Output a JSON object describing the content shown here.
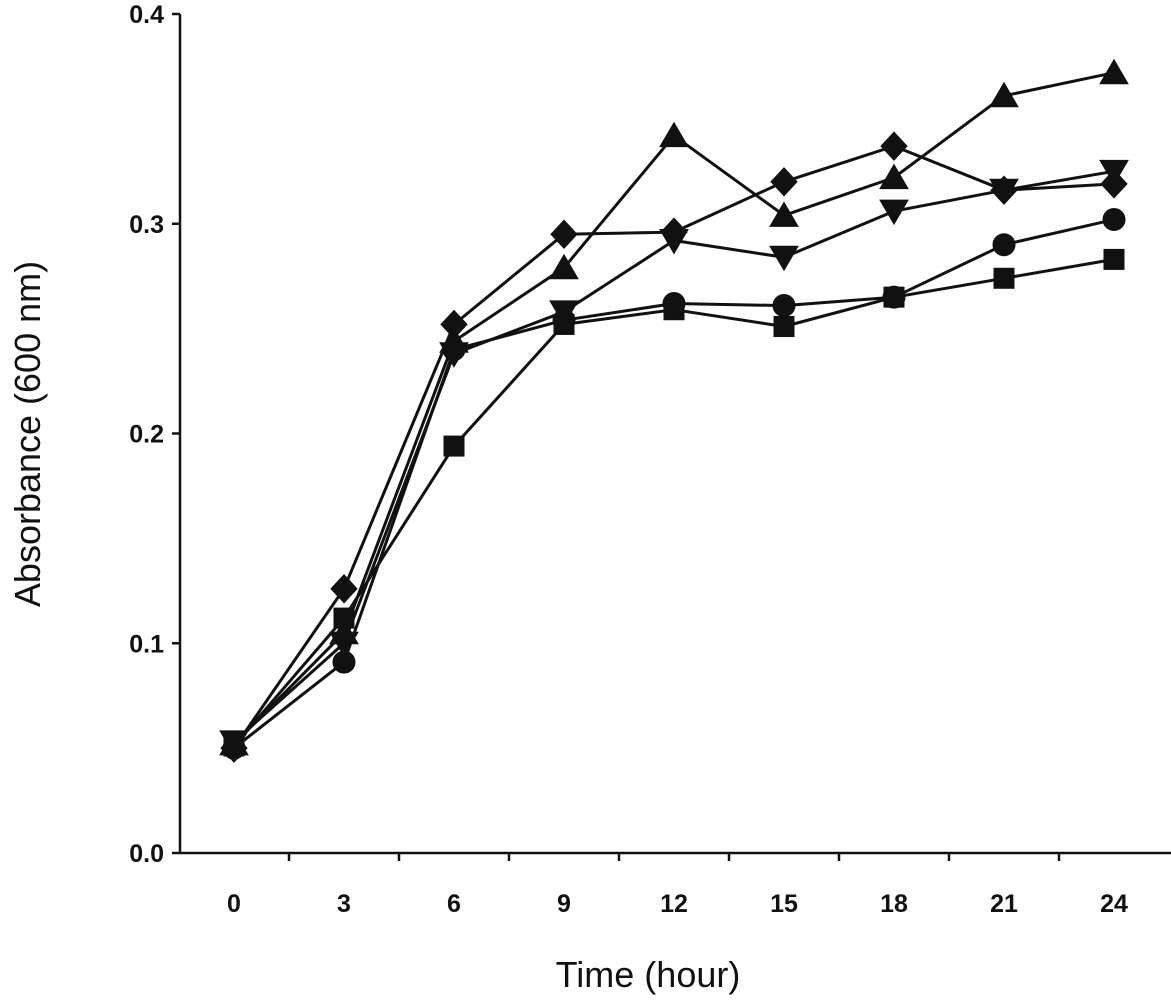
{
  "chart_data": {
    "type": "line",
    "title": "",
    "xlabel": "Time (hour)",
    "ylabel": "Absorbance (600 nm)",
    "x": [
      0,
      3,
      6,
      9,
      12,
      15,
      18,
      21,
      24
    ],
    "x_tick_labels": [
      "0",
      "3",
      "6",
      "9",
      "12",
      "15",
      "18",
      "21",
      "24"
    ],
    "y_tick_labels": [
      "0.0",
      "0.1",
      "0.2",
      "0.3",
      "0.4"
    ],
    "y_ticks": [
      0.0,
      0.1,
      0.2,
      0.3,
      0.4
    ],
    "xlim": [
      -1.5,
      25.5
    ],
    "ylim": [
      0.0,
      0.4
    ],
    "grid": false,
    "legend": "none",
    "series": [
      {
        "name": "square",
        "marker": "square",
        "values": [
          0.051,
          0.112,
          0.194,
          0.252,
          0.259,
          0.251,
          0.265,
          0.274,
          0.283
        ]
      },
      {
        "name": "circle",
        "marker": "circle",
        "values": [
          0.05,
          0.091,
          0.24,
          0.254,
          0.262,
          0.261,
          0.265,
          0.29,
          0.302
        ]
      },
      {
        "name": "triangle-up",
        "marker": "triangle-up",
        "values": [
          0.052,
          0.105,
          0.244,
          0.279,
          0.342,
          0.304,
          0.322,
          0.361,
          0.372
        ]
      },
      {
        "name": "triangle-down",
        "marker": "triangle-down",
        "values": [
          0.053,
          0.1,
          0.238,
          0.258,
          0.292,
          0.284,
          0.306,
          0.316,
          0.325
        ]
      },
      {
        "name": "diamond",
        "marker": "diamond",
        "values": [
          0.05,
          0.126,
          0.252,
          0.295,
          0.296,
          0.32,
          0.337,
          0.316,
          0.319
        ]
      }
    ]
  },
  "colors": {
    "line": "#111111",
    "background": "#ffffff"
  }
}
